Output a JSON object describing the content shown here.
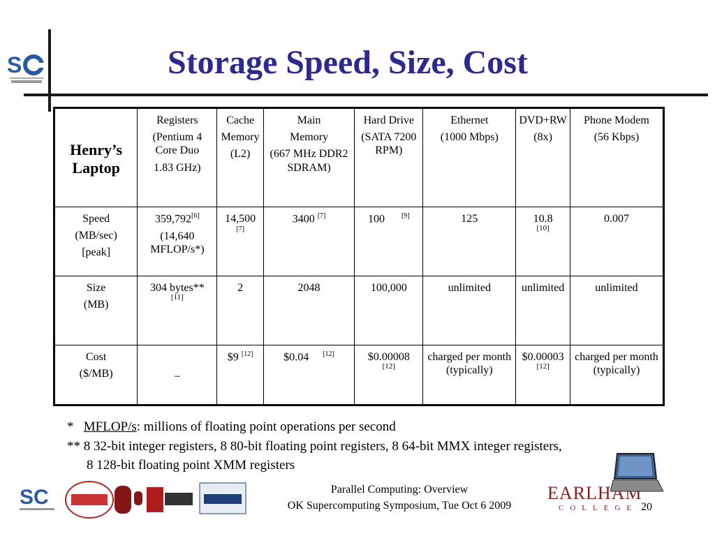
{
  "title": "Storage Speed, Size, Cost",
  "table": {
    "corner": "Henry’s Laptop",
    "headers": [
      {
        "lines": [
          "Registers",
          "(Pentium 4 Core Duo",
          "1.83 GHz)"
        ]
      },
      {
        "lines": [
          "Cache",
          "Memory",
          "(L2)"
        ]
      },
      {
        "lines": [
          "Main",
          "Memory",
          "(667 MHz DDR2 SDRAM)"
        ]
      },
      {
        "lines": [
          "Hard Drive",
          "(SATA 7200 RPM)"
        ]
      },
      {
        "lines": [
          "Ethernet",
          "(1000 Mbps)"
        ]
      },
      {
        "lines": [
          "DVD+RW",
          "(8x)"
        ]
      },
      {
        "lines": [
          "Phone Modem",
          "(56 Kbps)"
        ]
      }
    ],
    "rows": [
      {
        "label": [
          "Speed",
          "(MB/sec)",
          "[peak]"
        ],
        "cells": [
          {
            "value": "359,792",
            "ref": "[6]",
            "extra": "(14,640 MFLOP/s*)"
          },
          {
            "value": "14,500",
            "ref": "[7]"
          },
          {
            "value": "3400",
            "ref": "[7]"
          },
          {
            "value": "100",
            "ref": "[9]"
          },
          {
            "value": "125"
          },
          {
            "value": "10.8",
            "ref_below": "[10]"
          },
          {
            "value": "0.007"
          }
        ]
      },
      {
        "label": [
          "Size",
          "(MB)"
        ],
        "cells": [
          {
            "value": "304 bytes**",
            "ref_below": "[11]"
          },
          {
            "value": "2"
          },
          {
            "value": "2048"
          },
          {
            "value": "100,000"
          },
          {
            "value": "unlimited"
          },
          {
            "value": "unlimited"
          },
          {
            "value": "unlimited"
          }
        ]
      },
      {
        "label": [
          "Cost",
          "($/MB)"
        ],
        "cells": [
          {
            "value": "–"
          },
          {
            "value": "$9",
            "ref": "[12]"
          },
          {
            "value": "$0.04",
            "ref": "[12]"
          },
          {
            "value": "$0.00008",
            "ref_below": "[12]"
          },
          {
            "value": "charged per month (typically)"
          },
          {
            "value": "$0.00003",
            "ref_below": "[12]"
          },
          {
            "value": "charged per month (typically)"
          }
        ]
      }
    ]
  },
  "footnotes": {
    "star_mark": "*",
    "star_term": "MFLOP/s",
    "star_text": ": millions of floating point operations per second",
    "dstar_line1": "** 8 32-bit integer registers, 8 80-bit floating point registers, 8 64-bit MMX integer registers,",
    "dstar_line2": "8 128-bit floating point XMM registers"
  },
  "footer": {
    "line1": "Parallel Computing: Overview",
    "line2": "OK Supercomputing Symposium, Tue Oct 6 2009",
    "page": "20",
    "earlham": "EARLHAM",
    "college": "COLLEGE"
  }
}
